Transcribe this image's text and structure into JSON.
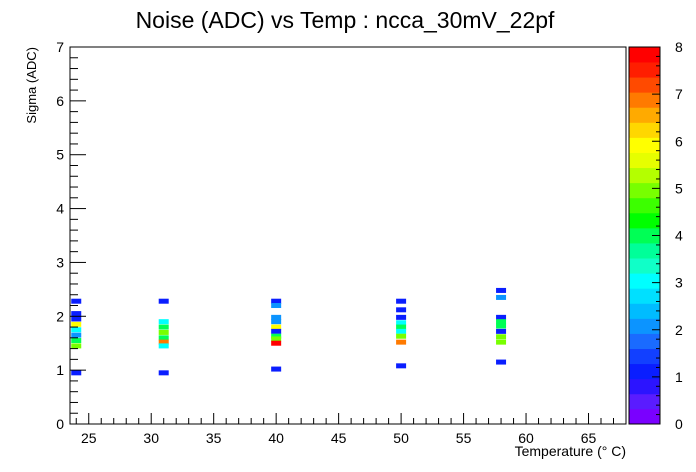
{
  "chart_data": {
    "type": "heatmap",
    "title": "Noise (ADC) vs Temp : ncca_30mV_22pf",
    "xlabel": "Temperature (° C)",
    "ylabel": "Sigma (ADC)",
    "xlim": [
      23.5,
      68
    ],
    "ylim": [
      0,
      7
    ],
    "x_ticks": [
      25,
      30,
      35,
      40,
      45,
      50,
      55,
      60,
      65
    ],
    "y_ticks": [
      0,
      1,
      2,
      3,
      4,
      5,
      6,
      7
    ],
    "colorbar": {
      "range": [
        0,
        8
      ],
      "ticks": [
        0,
        1,
        2,
        3,
        4,
        5,
        6,
        7,
        8
      ],
      "colors": [
        "#7a00ff",
        "#5a1cff",
        "#2c14ff",
        "#0a1eff",
        "#1240ff",
        "#1a6bff",
        "#0c94ff",
        "#00bcff",
        "#00e0ff",
        "#00ffff",
        "#10ffc8",
        "#00ff99",
        "#00ff55",
        "#00ff00",
        "#3cff00",
        "#78ff00",
        "#b4ff00",
        "#e6ff00",
        "#ffff00",
        "#ffd700",
        "#ffaa00",
        "#ff7a00",
        "#ff4a00",
        "#ff1e00",
        "#ff0000"
      ]
    },
    "bins": [
      {
        "x": 24.0,
        "y": 2.28,
        "v": 1
      },
      {
        "x": 24.0,
        "y": 2.05,
        "v": 1
      },
      {
        "x": 24.0,
        "y": 1.95,
        "v": 1
      },
      {
        "x": 24.0,
        "y": 1.85,
        "v": 6
      },
      {
        "x": 24.0,
        "y": 1.75,
        "v": 3
      },
      {
        "x": 24.0,
        "y": 1.65,
        "v": 2
      },
      {
        "x": 24.0,
        "y": 1.55,
        "v": 4
      },
      {
        "x": 24.0,
        "y": 1.45,
        "v": 5
      },
      {
        "x": 24.0,
        "y": 0.95,
        "v": 1
      },
      {
        "x": 31.0,
        "y": 2.28,
        "v": 1
      },
      {
        "x": 31.0,
        "y": 1.9,
        "v": 3
      },
      {
        "x": 31.0,
        "y": 1.8,
        "v": 4
      },
      {
        "x": 31.0,
        "y": 1.7,
        "v": 5
      },
      {
        "x": 31.0,
        "y": 1.6,
        "v": 4
      },
      {
        "x": 31.0,
        "y": 1.52,
        "v": 7
      },
      {
        "x": 31.0,
        "y": 1.45,
        "v": 3
      },
      {
        "x": 31.0,
        "y": 0.95,
        "v": 1
      },
      {
        "x": 40.0,
        "y": 2.28,
        "v": 1
      },
      {
        "x": 40.0,
        "y": 2.2,
        "v": 2
      },
      {
        "x": 40.0,
        "y": 1.98,
        "v": 2
      },
      {
        "x": 40.0,
        "y": 1.9,
        "v": 2
      },
      {
        "x": 40.0,
        "y": 1.8,
        "v": 6
      },
      {
        "x": 40.0,
        "y": 1.72,
        "v": 1
      },
      {
        "x": 40.0,
        "y": 1.63,
        "v": 4
      },
      {
        "x": 40.0,
        "y": 1.58,
        "v": 5
      },
      {
        "x": 40.0,
        "y": 1.5,
        "v": 8
      },
      {
        "x": 40.0,
        "y": 1.02,
        "v": 1
      },
      {
        "x": 50.0,
        "y": 2.28,
        "v": 1
      },
      {
        "x": 50.0,
        "y": 2.12,
        "v": 1
      },
      {
        "x": 50.0,
        "y": 1.98,
        "v": 1
      },
      {
        "x": 50.0,
        "y": 1.88,
        "v": 3
      },
      {
        "x": 50.0,
        "y": 1.8,
        "v": 4
      },
      {
        "x": 50.0,
        "y": 1.72,
        "v": 3
      },
      {
        "x": 50.0,
        "y": 1.63,
        "v": 5
      },
      {
        "x": 50.0,
        "y": 1.52,
        "v": 7
      },
      {
        "x": 50.0,
        "y": 1.08,
        "v": 1
      },
      {
        "x": 58.0,
        "y": 2.48,
        "v": 1
      },
      {
        "x": 58.0,
        "y": 2.35,
        "v": 2
      },
      {
        "x": 58.0,
        "y": 1.98,
        "v": 1
      },
      {
        "x": 58.0,
        "y": 1.9,
        "v": 4
      },
      {
        "x": 58.0,
        "y": 1.82,
        "v": 4
      },
      {
        "x": 58.0,
        "y": 1.72,
        "v": 1
      },
      {
        "x": 58.0,
        "y": 1.62,
        "v": 5
      },
      {
        "x": 58.0,
        "y": 1.52,
        "v": 5
      },
      {
        "x": 58.0,
        "y": 1.15,
        "v": 1
      }
    ]
  }
}
